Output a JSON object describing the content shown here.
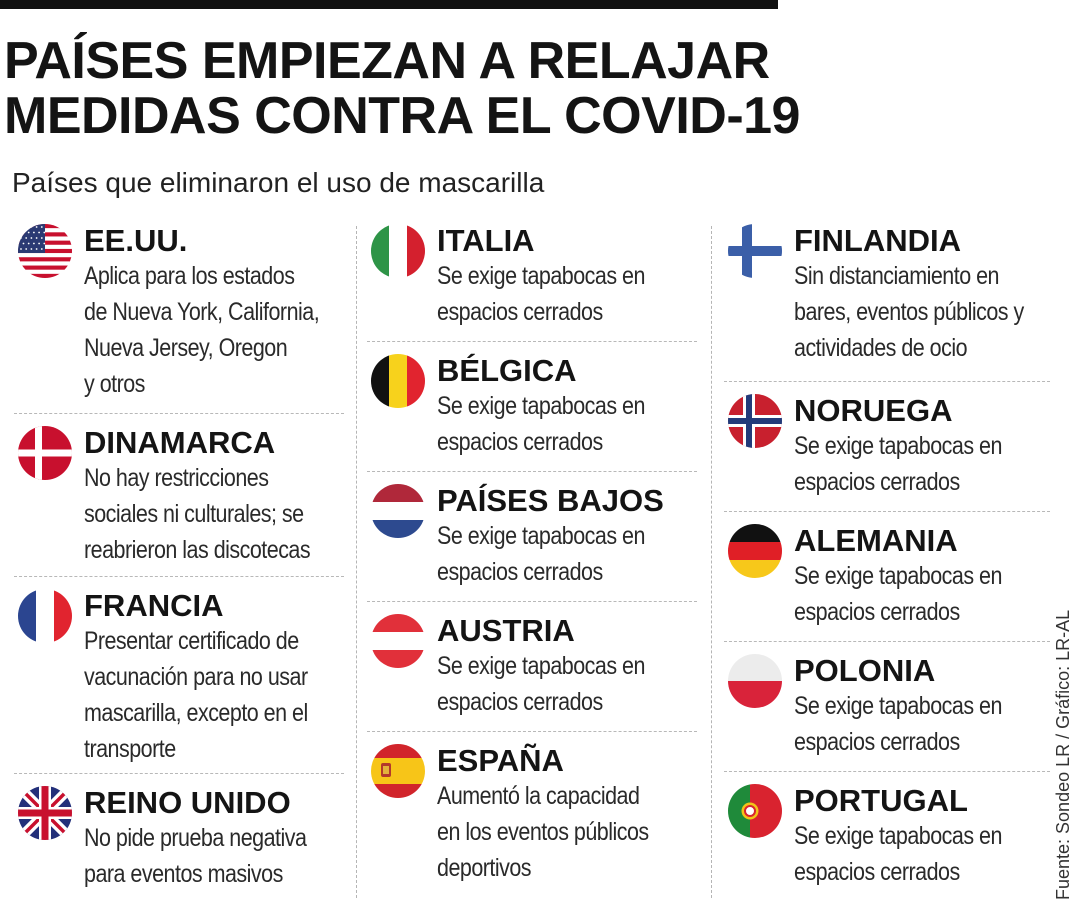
{
  "header": {
    "title_line1": "PAÍSES EMPIEZAN A RELAJAR",
    "title_line2": "MEDIDAS CONTRA EL COVID-19",
    "subtitle": "Países que eliminaron el uso de mascarilla"
  },
  "columns": [
    [
      {
        "name": "EE.UU.",
        "flag": "usa-flag-icon",
        "desc": [
          "Aplica para los estados",
          "de Nueva York, California,",
          "Nueva Jersey, Oregon",
          "y otros"
        ]
      },
      {
        "name": "DINAMARCA",
        "flag": "denmark-flag-icon",
        "desc": [
          "No hay restricciones",
          "sociales ni culturales; se",
          "reabrieron las discotecas"
        ]
      },
      {
        "name": "FRANCIA",
        "flag": "france-flag-icon",
        "desc": [
          "Presentar certificado de",
          "vacunación para no usar",
          "mascarilla, excepto en el",
          "transporte"
        ]
      },
      {
        "name": "REINO UNIDO",
        "flag": "uk-flag-icon",
        "desc": [
          "No pide prueba negativa",
          "para eventos masivos"
        ]
      }
    ],
    [
      {
        "name": "ITALIA",
        "flag": "italy-flag-icon",
        "desc": [
          "Se exige tapabocas en",
          "espacios cerrados"
        ]
      },
      {
        "name": "BÉLGICA",
        "flag": "belgium-flag-icon",
        "desc": [
          "Se exige tapabocas en",
          "espacios cerrados"
        ]
      },
      {
        "name": "PAÍSES BAJOS",
        "flag": "netherlands-flag-icon",
        "desc": [
          "Se exige tapabocas en",
          "espacios cerrados"
        ]
      },
      {
        "name": "AUSTRIA",
        "flag": "austria-flag-icon",
        "desc": [
          "Se exige tapabocas en",
          "espacios cerrados"
        ]
      },
      {
        "name": "ESPAÑA",
        "flag": "spain-flag-icon",
        "desc": [
          "Aumentó  la capacidad",
          "en los eventos públicos",
          "deportivos"
        ]
      }
    ],
    [
      {
        "name": "FINLANDIA",
        "flag": "finland-flag-icon",
        "desc": [
          "Sin distanciamiento en",
          "bares, eventos públicos y",
          "actividades de ocio"
        ]
      },
      {
        "name": "NORUEGA",
        "flag": "norway-flag-icon",
        "desc": [
          "Se exige tapabocas en",
          "espacios cerrados"
        ]
      },
      {
        "name": "ALEMANIA",
        "flag": "germany-flag-icon",
        "desc": [
          "Se exige tapabocas en",
          "espacios cerrados"
        ]
      },
      {
        "name": "POLONIA",
        "flag": "poland-flag-icon",
        "desc": [
          "Se exige tapabocas en",
          "espacios cerrados"
        ]
      },
      {
        "name": "PORTUGAL",
        "flag": "portugal-flag-icon",
        "desc": [
          "Se exige tapabocas en",
          "espacios cerrados"
        ]
      }
    ]
  ],
  "source": "Fuente: Sondeo LR / Gráfico: LR-AL",
  "colors": {
    "text": "#141414",
    "divider": "#b8b8b8"
  }
}
